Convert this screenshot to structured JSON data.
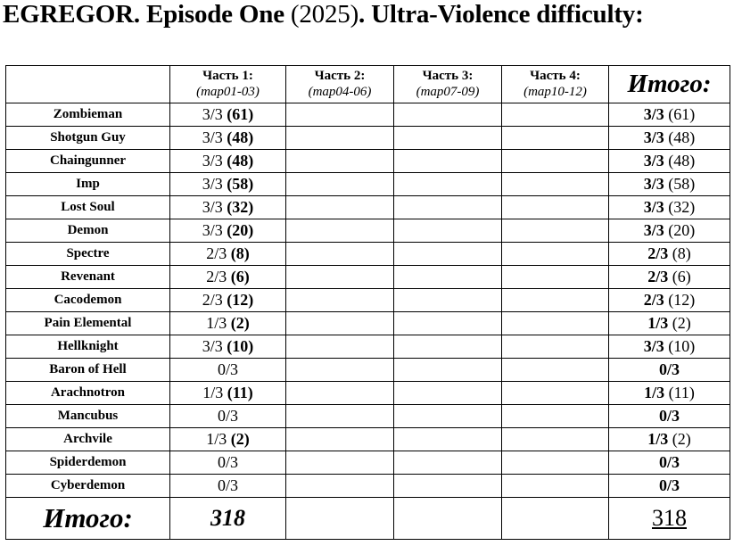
{
  "title": {
    "prefix": "EGREGOR. Episode One ",
    "year": "(2025)",
    "suffix": ". Ultra-Violence difficulty:"
  },
  "header": {
    "parts": [
      {
        "title": "Часть 1:",
        "maps": "(map01-03)"
      },
      {
        "title": "Часть 2:",
        "maps": "(map04-06)"
      },
      {
        "title": "Часть 3:",
        "maps": "(map07-09)"
      },
      {
        "title": "Часть 4:",
        "maps": "(map10-12)"
      }
    ],
    "total": "Итого:"
  },
  "monsters": [
    {
      "name": "Zombieman",
      "part1": {
        "ratio": "3/3",
        "kills": "(61)"
      },
      "total": {
        "ratio": "3/3",
        "kills": "(61)"
      }
    },
    {
      "name": "Shotgun Guy",
      "part1": {
        "ratio": "3/3",
        "kills": "(48)"
      },
      "total": {
        "ratio": "3/3",
        "kills": "(48)"
      }
    },
    {
      "name": "Chaingunner",
      "part1": {
        "ratio": "3/3",
        "kills": "(48)"
      },
      "total": {
        "ratio": "3/3",
        "kills": "(48)"
      }
    },
    {
      "name": "Imp",
      "part1": {
        "ratio": "3/3",
        "kills": "(58)"
      },
      "total": {
        "ratio": "3/3",
        "kills": "(58)"
      }
    },
    {
      "name": "Lost Soul",
      "part1": {
        "ratio": "3/3",
        "kills": "(32)"
      },
      "total": {
        "ratio": "3/3",
        "kills": "(32)"
      }
    },
    {
      "name": "Demon",
      "part1": {
        "ratio": "3/3",
        "kills": "(20)"
      },
      "total": {
        "ratio": "3/3",
        "kills": "(20)"
      }
    },
    {
      "name": "Spectre",
      "part1": {
        "ratio": "2/3",
        "kills": "(8)"
      },
      "total": {
        "ratio": "2/3",
        "kills": "(8)"
      }
    },
    {
      "name": "Revenant",
      "part1": {
        "ratio": "2/3",
        "kills": "(6)"
      },
      "total": {
        "ratio": "2/3",
        "kills": "(6)"
      }
    },
    {
      "name": "Cacodemon",
      "part1": {
        "ratio": "2/3",
        "kills": "(12)"
      },
      "total": {
        "ratio": "2/3",
        "kills": "(12)"
      }
    },
    {
      "name": "Pain Elemental",
      "part1": {
        "ratio": "1/3",
        "kills": "(2)"
      },
      "total": {
        "ratio": "1/3",
        "kills": "(2)"
      }
    },
    {
      "name": "Hellknight",
      "part1": {
        "ratio": "3/3",
        "kills": "(10)"
      },
      "total": {
        "ratio": "3/3",
        "kills": "(10)"
      }
    },
    {
      "name": "Baron of Hell",
      "part1": {
        "ratio": "0/3",
        "kills": ""
      },
      "total": {
        "ratio": "0/3",
        "kills": ""
      }
    },
    {
      "name": "Arachnotron",
      "part1": {
        "ratio": "1/3",
        "kills": "(11)"
      },
      "total": {
        "ratio": "1/3",
        "kills": "(11)"
      }
    },
    {
      "name": "Mancubus",
      "part1": {
        "ratio": "0/3",
        "kills": ""
      },
      "total": {
        "ratio": "0/3",
        "kills": ""
      }
    },
    {
      "name": "Archvile",
      "part1": {
        "ratio": "1/3",
        "kills": "(2)"
      },
      "total": {
        "ratio": "1/3",
        "kills": "(2)"
      }
    },
    {
      "name": "Spiderdemon",
      "part1": {
        "ratio": "0/3",
        "kills": ""
      },
      "total": {
        "ratio": "0/3",
        "kills": ""
      }
    },
    {
      "name": "Cyberdemon",
      "part1": {
        "ratio": "0/3",
        "kills": ""
      },
      "total": {
        "ratio": "0/3",
        "kills": ""
      }
    }
  ],
  "totals": {
    "label": "Итого:",
    "part1": "318",
    "grand": "318"
  }
}
